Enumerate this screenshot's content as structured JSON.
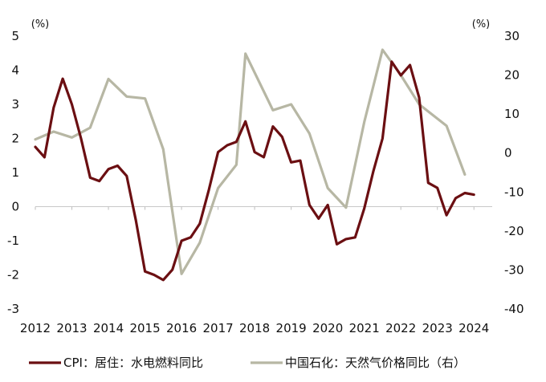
{
  "chart_data": {
    "type": "line",
    "title": "",
    "left_axis": {
      "unit": "(%)",
      "ylim": [
        -3,
        5
      ],
      "ticks": [
        "5",
        "4",
        "3",
        "2",
        "1",
        "0",
        "-1",
        "-2",
        "-3"
      ]
    },
    "right_axis": {
      "unit": "(%)",
      "ylim": [
        -40,
        30
      ],
      "ticks": [
        "30",
        "20",
        "10",
        "0",
        "-10",
        "-20",
        "-30",
        "-40"
      ]
    },
    "x_axis": {
      "range": [
        2012,
        2024.5
      ],
      "tick_labels": [
        "2012",
        "2013",
        "2014",
        "2015",
        "2016",
        "2017",
        "2018",
        "2019",
        "2020",
        "2021",
        "2022",
        "2023",
        "2024"
      ]
    },
    "grid": false,
    "legend_position": "bottom",
    "series": [
      {
        "name": "CPI：居住：水电燃料同比",
        "axis": "left",
        "color": "#6b0f12",
        "points": [
          [
            2012.0,
            1.75
          ],
          [
            2012.25,
            1.45
          ],
          [
            2012.5,
            2.9
          ],
          [
            2012.75,
            3.75
          ],
          [
            2013.0,
            3.0
          ],
          [
            2013.25,
            2.0
          ],
          [
            2013.5,
            0.85
          ],
          [
            2013.75,
            0.75
          ],
          [
            2014.0,
            1.1
          ],
          [
            2014.25,
            1.2
          ],
          [
            2014.5,
            0.9
          ],
          [
            2014.75,
            -0.4
          ],
          [
            2015.0,
            -1.9
          ],
          [
            2015.25,
            -2.0
          ],
          [
            2015.5,
            -2.15
          ],
          [
            2015.75,
            -1.85
          ],
          [
            2016.0,
            -1.0
          ],
          [
            2016.25,
            -0.9
          ],
          [
            2016.5,
            -0.5
          ],
          [
            2016.75,
            0.5
          ],
          [
            2017.0,
            1.6
          ],
          [
            2017.25,
            1.8
          ],
          [
            2017.5,
            1.9
          ],
          [
            2017.75,
            2.5
          ],
          [
            2018.0,
            1.6
          ],
          [
            2018.25,
            1.45
          ],
          [
            2018.5,
            2.35
          ],
          [
            2018.75,
            2.05
          ],
          [
            2019.0,
            1.3
          ],
          [
            2019.25,
            1.35
          ],
          [
            2019.5,
            0.05
          ],
          [
            2019.75,
            -0.35
          ],
          [
            2020.0,
            0.05
          ],
          [
            2020.25,
            -1.1
          ],
          [
            2020.5,
            -0.95
          ],
          [
            2020.75,
            -0.9
          ],
          [
            2021.0,
            -0.05
          ],
          [
            2021.25,
            1.05
          ],
          [
            2021.5,
            2.0
          ],
          [
            2021.75,
            4.25
          ],
          [
            2022.0,
            3.85
          ],
          [
            2022.25,
            4.15
          ],
          [
            2022.5,
            3.2
          ],
          [
            2022.75,
            0.7
          ],
          [
            2023.0,
            0.55
          ],
          [
            2023.25,
            -0.25
          ],
          [
            2023.5,
            0.25
          ],
          [
            2023.75,
            0.4
          ],
          [
            2024.0,
            0.35
          ]
        ]
      },
      {
        "name": "中国石化：天然气价格同比（右）",
        "axis": "right",
        "color": "#b7b7a4",
        "points": [
          [
            2012.0,
            3.5
          ],
          [
            2012.5,
            5.5
          ],
          [
            2013.0,
            4.0
          ],
          [
            2013.5,
            6.5
          ],
          [
            2014.0,
            19.0
          ],
          [
            2014.5,
            14.5
          ],
          [
            2015.0,
            14.0
          ],
          [
            2015.5,
            1.0
          ],
          [
            2016.0,
            -31.0
          ],
          [
            2016.5,
            -23.0
          ],
          [
            2017.0,
            -9.0
          ],
          [
            2017.5,
            -3.0
          ],
          [
            2017.75,
            25.5
          ],
          [
            2018.5,
            11.0
          ],
          [
            2019.0,
            12.5
          ],
          [
            2019.5,
            5.0
          ],
          [
            2020.0,
            -9.0
          ],
          [
            2020.5,
            -14.0
          ],
          [
            2021.0,
            8.0
          ],
          [
            2021.5,
            26.5
          ],
          [
            2022.0,
            20.0
          ],
          [
            2022.5,
            12.5
          ],
          [
            2023.25,
            7.0
          ],
          [
            2023.75,
            -5.5
          ]
        ]
      }
    ]
  }
}
